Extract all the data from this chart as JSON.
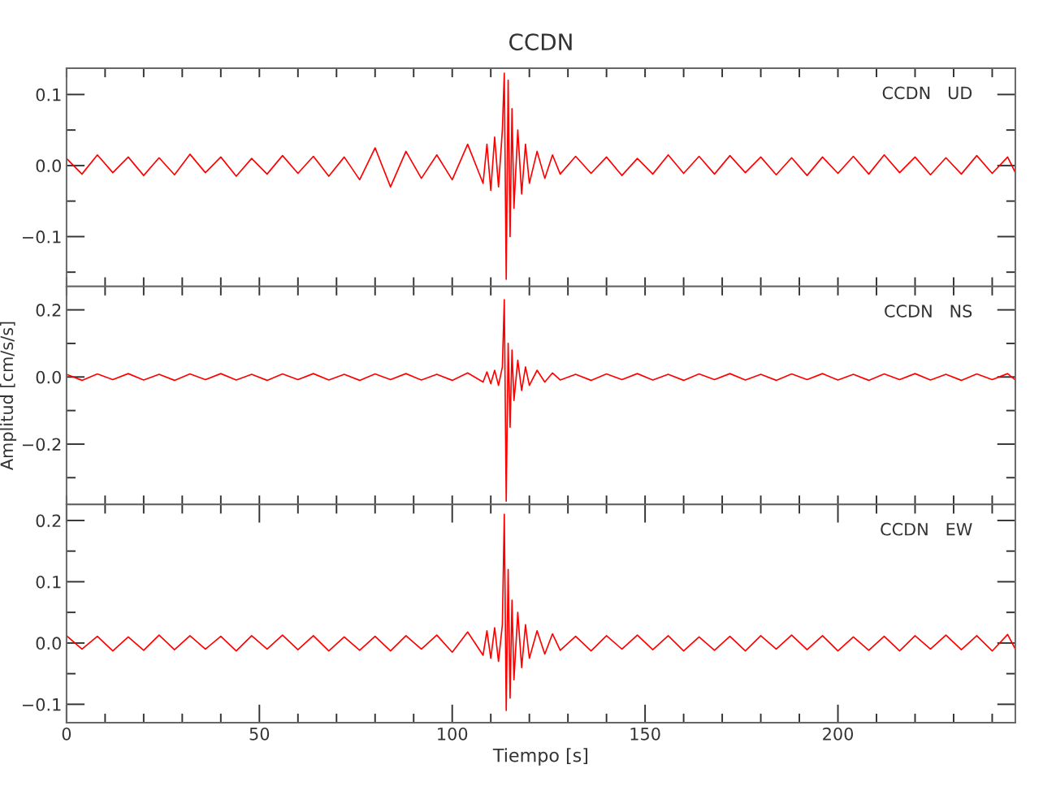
{
  "chart_data": [
    {
      "type": "line",
      "title": "CCDN",
      "annotations": [
        "CCDN   UD"
      ],
      "tick_labels": "y",
      "grid": false,
      "xlim": [
        0,
        246
      ],
      "ylim": [
        -0.17,
        0.137
      ],
      "xticks": [
        {
          "value": 0,
          "label": null
        },
        {
          "value": 10,
          "label": null
        },
        {
          "value": 20,
          "label": null
        },
        {
          "value": 30,
          "label": null
        },
        {
          "value": 40,
          "label": null
        },
        {
          "value": 50,
          "label": null
        },
        {
          "value": 60,
          "label": null
        },
        {
          "value": 70,
          "label": null
        },
        {
          "value": 80,
          "label": null
        },
        {
          "value": 90,
          "label": null
        },
        {
          "value": 100,
          "label": null
        },
        {
          "value": 110,
          "label": null
        },
        {
          "value": 120,
          "label": null
        },
        {
          "value": 130,
          "label": null
        },
        {
          "value": 140,
          "label": null
        },
        {
          "value": 150,
          "label": null
        },
        {
          "value": 160,
          "label": null
        },
        {
          "value": 170,
          "label": null
        },
        {
          "value": 180,
          "label": null
        },
        {
          "value": 190,
          "label": null
        },
        {
          "value": 200,
          "label": null
        },
        {
          "value": 210,
          "label": null
        },
        {
          "value": 220,
          "label": null
        },
        {
          "value": 230,
          "label": null
        },
        {
          "value": 240,
          "label": null
        }
      ],
      "yticks": [
        {
          "value": -0.15,
          "label": null
        },
        {
          "value": -0.1,
          "label": "−0.1"
        },
        {
          "value": -0.05,
          "label": null
        },
        {
          "value": 0,
          "label": "0.0"
        },
        {
          "value": 0.05,
          "label": null
        },
        {
          "value": 0.1,
          "label": "0.1"
        }
      ],
      "series": [
        {
          "color": "#ff0000",
          "x": [
            0,
            4,
            8,
            12,
            16,
            20,
            24,
            28,
            32,
            36,
            40,
            44,
            48,
            52,
            56,
            60,
            64,
            68,
            72,
            76,
            80,
            84,
            88,
            92,
            96,
            100,
            104,
            108,
            109,
            110,
            111,
            112,
            113,
            113.5,
            114,
            114.5,
            115,
            115.5,
            116,
            117,
            118,
            119,
            120,
            122,
            124,
            126,
            128,
            132,
            136,
            140,
            144,
            148,
            152,
            156,
            160,
            164,
            168,
            172,
            176,
            180,
            184,
            188,
            192,
            196,
            200,
            204,
            208,
            212,
            216,
            220,
            224,
            228,
            232,
            236,
            240,
            244,
            246
          ],
          "values": [
            0.01,
            -0.012,
            0.015,
            -0.01,
            0.012,
            -0.014,
            0.011,
            -0.013,
            0.016,
            -0.01,
            0.012,
            -0.015,
            0.01,
            -0.012,
            0.014,
            -0.011,
            0.013,
            -0.015,
            0.012,
            -0.02,
            0.025,
            -0.03,
            0.02,
            -0.018,
            0.015,
            -0.02,
            0.03,
            -0.025,
            0.03,
            -0.035,
            0.04,
            -0.03,
            0.05,
            0.13,
            -0.16,
            0.12,
            -0.1,
            0.08,
            -0.06,
            0.05,
            -0.04,
            0.03,
            -0.025,
            0.02,
            -0.018,
            0.015,
            -0.012,
            0.013,
            -0.011,
            0.012,
            -0.014,
            0.01,
            -0.012,
            0.015,
            -0.011,
            0.013,
            -0.012,
            0.014,
            -0.01,
            0.012,
            -0.013,
            0.011,
            -0.014,
            0.012,
            -0.011,
            0.013,
            -0.012,
            0.015,
            -0.01,
            0.012,
            -0.013,
            0.011,
            -0.012,
            0.014,
            -0.011,
            0.012,
            -0.01
          ]
        }
      ]
    },
    {
      "type": "line",
      "ylabel": "Amplitud [cm/s/s]",
      "annotations": [
        "CCDN   NS"
      ],
      "tick_labels": "y",
      "grid": false,
      "xlim": [
        0,
        246
      ],
      "ylim": [
        -0.38,
        0.27
      ],
      "xticks": [
        {
          "value": 0,
          "label": null
        },
        {
          "value": 10,
          "label": null
        },
        {
          "value": 20,
          "label": null
        },
        {
          "value": 30,
          "label": null
        },
        {
          "value": 40,
          "label": null
        },
        {
          "value": 50,
          "label": null
        },
        {
          "value": 60,
          "label": null
        },
        {
          "value": 70,
          "label": null
        },
        {
          "value": 80,
          "label": null
        },
        {
          "value": 90,
          "label": null
        },
        {
          "value": 100,
          "label": null
        },
        {
          "value": 110,
          "label": null
        },
        {
          "value": 120,
          "label": null
        },
        {
          "value": 130,
          "label": null
        },
        {
          "value": 140,
          "label": null
        },
        {
          "value": 150,
          "label": null
        },
        {
          "value": 160,
          "label": null
        },
        {
          "value": 170,
          "label": null
        },
        {
          "value": 180,
          "label": null
        },
        {
          "value": 190,
          "label": null
        },
        {
          "value": 200,
          "label": null
        },
        {
          "value": 210,
          "label": null
        },
        {
          "value": 220,
          "label": null
        },
        {
          "value": 230,
          "label": null
        },
        {
          "value": 240,
          "label": null
        }
      ],
      "yticks": [
        {
          "value": -0.3,
          "label": null
        },
        {
          "value": -0.2,
          "label": "−0.2"
        },
        {
          "value": -0.1,
          "label": null
        },
        {
          "value": 0,
          "label": "0.0"
        },
        {
          "value": 0.1,
          "label": null
        },
        {
          "value": 0.2,
          "label": "0.2"
        }
      ],
      "series": [
        {
          "color": "#ff0000",
          "x": [
            0,
            4,
            8,
            12,
            16,
            20,
            24,
            28,
            32,
            36,
            40,
            44,
            48,
            52,
            56,
            60,
            64,
            68,
            72,
            76,
            80,
            84,
            88,
            92,
            96,
            100,
            104,
            108,
            109,
            110,
            111,
            112,
            113,
            113.5,
            114,
            114.5,
            115,
            115.5,
            116,
            117,
            118,
            119,
            120,
            122,
            124,
            126,
            128,
            132,
            136,
            140,
            144,
            148,
            152,
            156,
            160,
            164,
            168,
            172,
            176,
            180,
            184,
            188,
            192,
            196,
            200,
            204,
            208,
            212,
            216,
            220,
            224,
            228,
            232,
            236,
            240,
            244,
            246
          ],
          "values": [
            0.008,
            -0.01,
            0.009,
            -0.008,
            0.01,
            -0.009,
            0.008,
            -0.01,
            0.009,
            -0.008,
            0.01,
            -0.009,
            0.008,
            -0.01,
            0.009,
            -0.008,
            0.01,
            -0.009,
            0.008,
            -0.01,
            0.009,
            -0.008,
            0.01,
            -0.009,
            0.008,
            -0.01,
            0.012,
            -0.015,
            0.015,
            -0.02,
            0.02,
            -0.025,
            0.03,
            0.23,
            -0.37,
            0.1,
            -0.15,
            0.08,
            -0.07,
            0.05,
            -0.04,
            0.03,
            -0.025,
            0.02,
            -0.015,
            0.012,
            -0.009,
            0.008,
            -0.01,
            0.009,
            -0.008,
            0.01,
            -0.009,
            0.008,
            -0.01,
            0.009,
            -0.008,
            0.01,
            -0.009,
            0.008,
            -0.01,
            0.009,
            -0.008,
            0.01,
            -0.009,
            0.008,
            -0.01,
            0.009,
            -0.008,
            0.01,
            -0.009,
            0.008,
            -0.01,
            0.009,
            -0.008,
            0.01,
            -0.009
          ]
        }
      ]
    },
    {
      "type": "line",
      "xlabel": "Tiempo [s]",
      "annotations": [
        "CCDN   EW"
      ],
      "grid": false,
      "xlim": [
        0,
        246
      ],
      "ylim": [
        -0.13,
        0.226
      ],
      "xticks": [
        0,
        {
          "value": 10,
          "label": null
        },
        {
          "value": 20,
          "label": null
        },
        {
          "value": 30,
          "label": null
        },
        {
          "value": 40,
          "label": null
        },
        50,
        {
          "value": 60,
          "label": null
        },
        {
          "value": 70,
          "label": null
        },
        {
          "value": 80,
          "label": null
        },
        {
          "value": 90,
          "label": null
        },
        100,
        {
          "value": 110,
          "label": null
        },
        {
          "value": 120,
          "label": null
        },
        {
          "value": 130,
          "label": null
        },
        {
          "value": 140,
          "label": null
        },
        150,
        {
          "value": 160,
          "label": null
        },
        {
          "value": 170,
          "label": null
        },
        {
          "value": 180,
          "label": null
        },
        {
          "value": 190,
          "label": null
        },
        200,
        {
          "value": 210,
          "label": null
        },
        {
          "value": 220,
          "label": null
        },
        {
          "value": 230,
          "label": null
        },
        {
          "value": 240,
          "label": null
        }
      ],
      "yticks": [
        {
          "value": -0.1,
          "label": "−0.1"
        },
        {
          "value": -0.05,
          "label": null
        },
        {
          "value": 0,
          "label": "0.0"
        },
        {
          "value": 0.05,
          "label": null
        },
        {
          "value": 0.1,
          "label": "0.1"
        },
        {
          "value": 0.15,
          "label": null
        },
        {
          "value": 0.2,
          "label": "0.2"
        }
      ],
      "series": [
        {
          "color": "#ff0000",
          "x": [
            0,
            4,
            8,
            12,
            16,
            20,
            24,
            28,
            32,
            36,
            40,
            44,
            48,
            52,
            56,
            60,
            64,
            68,
            72,
            76,
            80,
            84,
            88,
            92,
            96,
            100,
            104,
            108,
            109,
            110,
            111,
            112,
            113,
            113.5,
            114,
            114.5,
            115,
            115.5,
            116,
            117,
            118,
            119,
            120,
            122,
            124,
            126,
            128,
            132,
            136,
            140,
            144,
            148,
            152,
            156,
            160,
            164,
            168,
            172,
            176,
            180,
            184,
            188,
            192,
            196,
            200,
            204,
            208,
            212,
            216,
            220,
            224,
            228,
            232,
            236,
            240,
            244,
            246
          ],
          "values": [
            0.012,
            -0.01,
            0.011,
            -0.013,
            0.01,
            -0.012,
            0.013,
            -0.011,
            0.012,
            -0.01,
            0.011,
            -0.013,
            0.012,
            -0.01,
            0.013,
            -0.011,
            0.012,
            -0.013,
            0.01,
            -0.012,
            0.011,
            -0.013,
            0.012,
            -0.01,
            0.013,
            -0.015,
            0.018,
            -0.02,
            0.02,
            -0.025,
            0.025,
            -0.03,
            0.03,
            0.21,
            -0.11,
            0.12,
            -0.09,
            0.07,
            -0.06,
            0.05,
            -0.04,
            0.03,
            -0.025,
            0.02,
            -0.018,
            0.015,
            -0.012,
            0.011,
            -0.013,
            0.012,
            -0.01,
            0.013,
            -0.011,
            0.012,
            -0.013,
            0.01,
            -0.012,
            0.011,
            -0.013,
            0.012,
            -0.01,
            0.013,
            -0.011,
            0.012,
            -0.013,
            0.01,
            -0.012,
            0.011,
            -0.013,
            0.012,
            -0.01,
            0.013,
            -0.011,
            0.012,
            -0.013,
            0.014,
            -0.01
          ]
        }
      ]
    }
  ]
}
